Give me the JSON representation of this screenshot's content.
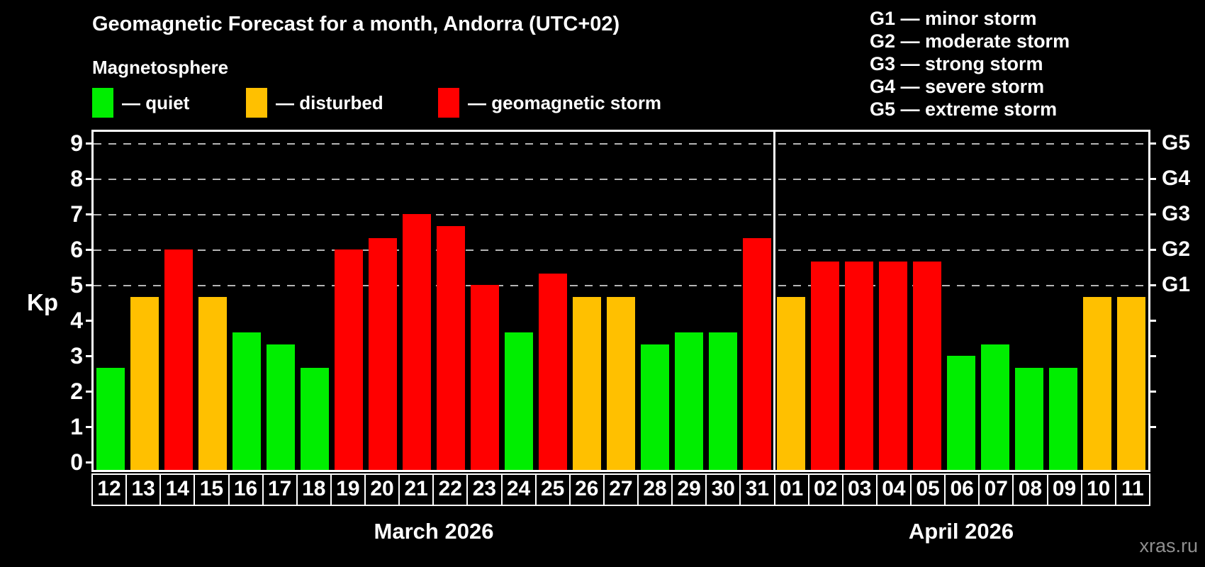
{
  "header": {
    "title": "Geomagnetic Forecast for a month, Andorra (UTC+02)",
    "subtitle": "Magnetosphere",
    "legend": [
      {
        "label": "— quiet",
        "status": "quiet",
        "x": 130
      },
      {
        "label": "— disturbed",
        "status": "disturbed",
        "x": 347
      },
      {
        "label": "— geomagnetic storm",
        "status": "storm",
        "x": 618
      }
    ],
    "g_scale_legend": [
      "G1 — minor storm",
      "G2 — moderate storm",
      "G3 — strong storm",
      "G4 — severe storm",
      "G5 — extreme storm"
    ]
  },
  "chart_data": {
    "type": "bar",
    "title": "Geomagnetic Forecast for a month, Andorra (UTC+02)",
    "subtitle": "Magnetosphere",
    "ylabel": "Kp",
    "ylim": [
      0,
      9
    ],
    "y_ticks": [
      0,
      1,
      2,
      3,
      4,
      5,
      6,
      7,
      8,
      9
    ],
    "gridlines_at_kp": [
      5,
      6,
      7,
      8,
      9
    ],
    "grid_style": "dashed gray horizontal lines at storm levels only",
    "right_axis_labels": [
      {
        "label": "G1",
        "kp": 5
      },
      {
        "label": "G2",
        "kp": 6
      },
      {
        "label": "G3",
        "kp": 7
      },
      {
        "label": "G4",
        "kp": 8
      },
      {
        "label": "G5",
        "kp": 9
      }
    ],
    "status_colors": {
      "quiet": "#00ee00",
      "disturbed": "#ffc000",
      "storm": "#ff0000"
    },
    "months": [
      {
        "label": "March 2026",
        "days": 20
      },
      {
        "label": "April 2026",
        "days": 11
      }
    ],
    "series": [
      {
        "day": "12",
        "month": "March 2026",
        "value": 2.67,
        "status": "quiet"
      },
      {
        "day": "13",
        "month": "March 2026",
        "value": 4.67,
        "status": "disturbed"
      },
      {
        "day": "14",
        "month": "March 2026",
        "value": 6.0,
        "status": "storm"
      },
      {
        "day": "15",
        "month": "March 2026",
        "value": 4.67,
        "status": "disturbed"
      },
      {
        "day": "16",
        "month": "March 2026",
        "value": 3.67,
        "status": "quiet"
      },
      {
        "day": "17",
        "month": "March 2026",
        "value": 3.33,
        "status": "quiet"
      },
      {
        "day": "18",
        "month": "March 2026",
        "value": 2.67,
        "status": "quiet"
      },
      {
        "day": "19",
        "month": "March 2026",
        "value": 6.0,
        "status": "storm"
      },
      {
        "day": "20",
        "month": "March 2026",
        "value": 6.33,
        "status": "storm"
      },
      {
        "day": "21",
        "month": "March 2026",
        "value": 7.0,
        "status": "storm"
      },
      {
        "day": "22",
        "month": "March 2026",
        "value": 6.67,
        "status": "storm"
      },
      {
        "day": "23",
        "month": "March 2026",
        "value": 5.0,
        "status": "storm"
      },
      {
        "day": "24",
        "month": "March 2026",
        "value": 3.67,
        "status": "quiet"
      },
      {
        "day": "25",
        "month": "March 2026",
        "value": 5.33,
        "status": "storm"
      },
      {
        "day": "26",
        "month": "March 2026",
        "value": 4.67,
        "status": "disturbed"
      },
      {
        "day": "27",
        "month": "March 2026",
        "value": 4.67,
        "status": "disturbed"
      },
      {
        "day": "28",
        "month": "March 2026",
        "value": 3.33,
        "status": "quiet"
      },
      {
        "day": "29",
        "month": "March 2026",
        "value": 3.67,
        "status": "quiet"
      },
      {
        "day": "30",
        "month": "March 2026",
        "value": 3.67,
        "status": "quiet"
      },
      {
        "day": "31",
        "month": "March 2026",
        "value": 6.33,
        "status": "storm"
      },
      {
        "day": "01",
        "month": "April 2026",
        "value": 4.67,
        "status": "disturbed"
      },
      {
        "day": "02",
        "month": "April 2026",
        "value": 5.67,
        "status": "storm"
      },
      {
        "day": "03",
        "month": "April 2026",
        "value": 5.67,
        "status": "storm"
      },
      {
        "day": "04",
        "month": "April 2026",
        "value": 5.67,
        "status": "storm"
      },
      {
        "day": "05",
        "month": "April 2026",
        "value": 5.67,
        "status": "storm"
      },
      {
        "day": "06",
        "month": "April 2026",
        "value": 3.0,
        "status": "quiet"
      },
      {
        "day": "07",
        "month": "April 2026",
        "value": 3.33,
        "status": "quiet"
      },
      {
        "day": "08",
        "month": "April 2026",
        "value": 2.67,
        "status": "quiet"
      },
      {
        "day": "09",
        "month": "April 2026",
        "value": 2.67,
        "status": "quiet"
      },
      {
        "day": "10",
        "month": "April 2026",
        "value": 4.67,
        "status": "disturbed"
      },
      {
        "day": "11",
        "month": "April 2026",
        "value": 4.67,
        "status": "disturbed"
      }
    ],
    "legend_position": "top"
  },
  "watermark": "xras.ru"
}
